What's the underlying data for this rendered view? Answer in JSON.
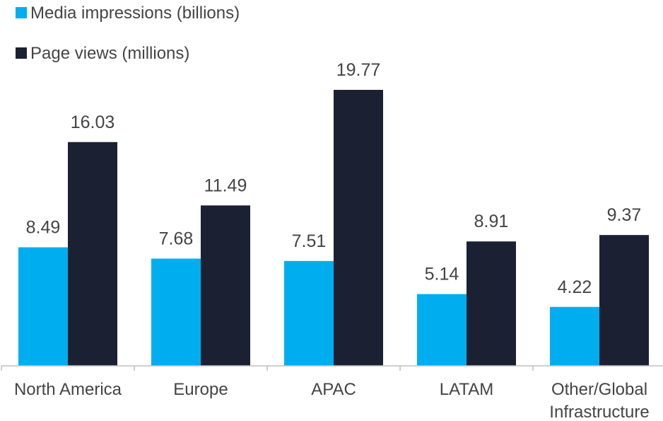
{
  "colors": {
    "media_impressions": "#00aeef",
    "page_views": "#1b2133",
    "axis": "#bfbfbf",
    "text": "#444444"
  },
  "chart_data": {
    "type": "bar",
    "title": "",
    "xlabel": "",
    "ylabel": "",
    "categories": [
      "North America",
      "Europe",
      "APAC",
      "LATAM",
      "Other/Global Infrastructure"
    ],
    "category_lines": [
      [
        "North America"
      ],
      [
        "Europe"
      ],
      [
        "APAC"
      ],
      [
        "LATAM"
      ],
      [
        "Other/Global",
        "Infrastructure"
      ]
    ],
    "series": [
      {
        "name": "Media impressions (billions)",
        "values": [
          8.49,
          7.68,
          7.51,
          5.14,
          4.22
        ],
        "color": "#00aeef"
      },
      {
        "name": "Page views (millions)",
        "values": [
          16.03,
          11.49,
          19.77,
          8.91,
          9.37
        ],
        "color": "#1b2133"
      }
    ],
    "ylim": [
      0,
      22.2
    ],
    "grid": false,
    "legend_position": "top-left"
  }
}
